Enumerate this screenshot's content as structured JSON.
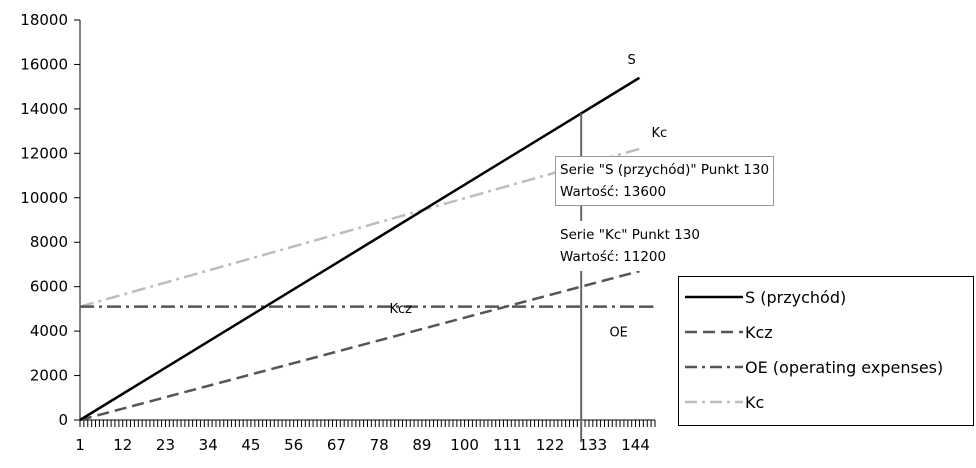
{
  "chart_data": {
    "type": "line",
    "x": [
      1,
      145
    ],
    "xticks": [
      "1",
      "12",
      "23",
      "34",
      "45",
      "56",
      "67",
      "78",
      "89",
      "100",
      "111",
      "122",
      "133",
      "144"
    ],
    "yticks": [
      "0",
      "2000",
      "4000",
      "6000",
      "8000",
      "10000",
      "12000",
      "14000",
      "16000",
      "18000"
    ],
    "ylim": [
      0,
      18000
    ],
    "grid": false,
    "legend_position": "right",
    "series": [
      {
        "name": "S (przychód)",
        "tag": "S",
        "values": [
          0,
          15400
        ],
        "color": "#000000",
        "dash": "solid"
      },
      {
        "name": "Kcz",
        "tag": "Kcz",
        "values": [
          0,
          6700
        ],
        "color": "#555555",
        "dash": "dashed"
      },
      {
        "name": "OE (operating expenses)",
        "tag": "OE",
        "values": [
          5100,
          5100
        ],
        "color": "#555555",
        "dash": "dash-dot"
      },
      {
        "name": "Kc",
        "tag": "Kc",
        "values": [
          5100,
          12200
        ],
        "color": "#bdbdbd",
        "dash": "dash-dot"
      }
    ],
    "cursor_x": 130,
    "tooltips": [
      {
        "line1": "Serie \"S (przychód)\" Punkt 130",
        "line2": "Wartość: 13600"
      },
      {
        "line1": "Serie \"Kc\" Punkt 130",
        "line2": "Wartość: 11200"
      }
    ]
  }
}
